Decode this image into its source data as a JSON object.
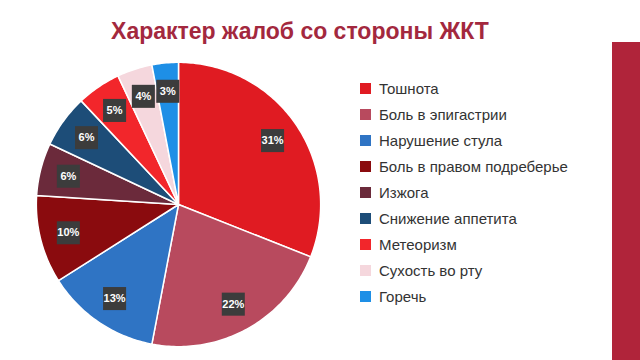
{
  "chart_data": {
    "type": "pie",
    "title": "Характер жалоб со стороны ЖКТ",
    "categories": [
      "Тошнота",
      "Боль в эпигастрии",
      "Нарушение стула",
      "Боль в правом подреберье",
      "Изжога",
      "Снижение аппетита",
      "Метеоризм",
      "Сухость во рту",
      "Горечь"
    ],
    "values": [
      31,
      22,
      13,
      10,
      6,
      6,
      5,
      4,
      3
    ],
    "value_labels": [
      "31%",
      "22%",
      "13%",
      "10%",
      "6%",
      "6%",
      "5%",
      "4%",
      "3%"
    ],
    "colors": [
      "#e01b22",
      "#b84a5e",
      "#2f74c4",
      "#8a0b0e",
      "#6b2a3b",
      "#1d4d78",
      "#f2262b",
      "#f5d7dd",
      "#1e8fe6"
    ],
    "data_labels": true,
    "legend": "right"
  }
}
